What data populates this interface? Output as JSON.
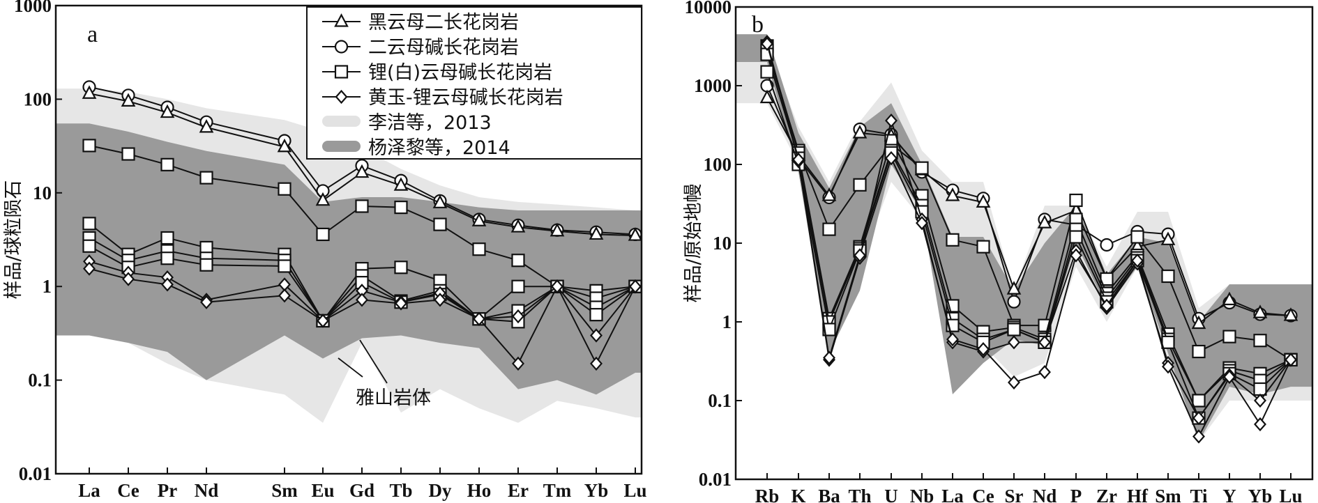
{
  "chart_data": [
    {
      "type": "line",
      "panel": "a",
      "ylabel": "样品/球粒陨石",
      "yscale": "log",
      "ylim": [
        0.01,
        1000
      ],
      "yticks": [
        "0.01",
        "0.1",
        "1",
        "10",
        "100",
        "1000"
      ],
      "categories": [
        "La",
        "Ce",
        "Pr",
        "Nd",
        "Sm",
        "Eu",
        "Gd",
        "Tb",
        "Dy",
        "Ho",
        "Er",
        "Tm",
        "Yb",
        "Lu"
      ],
      "legend": [
        {
          "label": "黑云母二长花岗岩",
          "marker": "triangle"
        },
        {
          "label": "二云母碱长花岗岩",
          "marker": "circle"
        },
        {
          "label": "锂(白)云母碱长花岗岩",
          "marker": "square"
        },
        {
          "label": "黄玉-锂云母碱长花岗岩",
          "marker": "diamond"
        },
        {
          "label": "李洁等，2013",
          "marker": "light-band"
        },
        {
          "label": "杨泽黎等，2014",
          "marker": "dark-band"
        }
      ],
      "annotation": "雅山岩体",
      "bands": [
        {
          "name": "李洁等，2013",
          "color": "#e6e6e6",
          "upper": [
            130,
            120,
            100,
            80,
            60,
            45,
            30,
            18,
            12,
            9,
            8,
            7.5,
            7,
            6.5
          ],
          "lower": [
            0.3,
            0.25,
            0.15,
            0.1,
            0.07,
            0.035,
            0.25,
            0.045,
            0.08,
            0.05,
            0.035,
            0.06,
            0.05,
            0.04
          ]
        },
        {
          "name": "杨泽黎等，2014",
          "color": "#9a9a9a",
          "upper": [
            55,
            45,
            35,
            28,
            20,
            8,
            9,
            9,
            8,
            7,
            6.5,
            6.5,
            6.5,
            6.5
          ],
          "lower": [
            0.3,
            0.25,
            0.2,
            0.1,
            0.3,
            0.17,
            0.28,
            0.3,
            0.25,
            0.22,
            0.08,
            0.1,
            0.07,
            0.12
          ]
        }
      ],
      "series": [
        {
          "marker": "circle",
          "values": [
            135,
            110,
            82,
            57,
            36,
            10.5,
            19.5,
            13.5,
            8.2,
            5.2,
            4.5,
            4.0,
            3.8,
            3.6
          ]
        },
        {
          "marker": "triangle",
          "values": [
            115,
            95,
            72,
            50,
            31,
            8.3,
            16.5,
            12.0,
            7.8,
            5.0,
            4.3,
            3.9,
            3.6,
            3.5
          ]
        },
        {
          "marker": "square",
          "values": [
            32,
            26,
            20,
            14.5,
            11,
            3.6,
            7.2,
            7.0,
            4.6,
            2.5,
            1.9,
            1.0,
            0.9,
            1.0
          ]
        },
        {
          "marker": "square",
          "values": [
            4.7,
            2.2,
            3.3,
            2.6,
            2.2,
            0.43,
            1.55,
            1.6,
            1.15,
            0.45,
            0.55,
            1.0,
            0.75,
            1.0
          ]
        },
        {
          "marker": "square",
          "values": [
            3.3,
            1.9,
            2.4,
            2.0,
            1.9,
            0.43,
            1.3,
            0.7,
            0.9,
            0.45,
            0.42,
            1.0,
            0.6,
            1.0
          ]
        },
        {
          "marker": "square",
          "values": [
            2.7,
            1.6,
            2.0,
            1.7,
            1.65,
            0.43,
            1.1,
            0.68,
            0.82,
            0.45,
            1.0,
            1.0,
            0.5,
            1.0
          ]
        },
        {
          "marker": "diamond",
          "values": [
            1.85,
            1.4,
            1.25,
            0.72,
            1.05,
            0.43,
            0.9,
            0.68,
            0.85,
            0.45,
            0.15,
            1.0,
            0.3,
            1.0
          ]
        },
        {
          "marker": "diamond",
          "values": [
            1.55,
            1.2,
            1.05,
            0.68,
            0.8,
            0.43,
            0.72,
            0.66,
            0.72,
            0.45,
            0.48,
            1.0,
            0.15,
            1.0
          ]
        }
      ]
    },
    {
      "type": "line",
      "panel": "b",
      "ylabel": "样品/原始地幔",
      "yscale": "log",
      "ylim": [
        0.01,
        10000
      ],
      "yticks": [
        "0.01",
        "0.1",
        "1",
        "10",
        "100",
        "1000",
        "10000"
      ],
      "categories": [
        "Rb",
        "K",
        "Ba",
        "Th",
        "U",
        "Nb",
        "La",
        "Ce",
        "Sr",
        "Nd",
        "P",
        "Zr",
        "Hf",
        "Sm",
        "Ti",
        "Y",
        "Yb",
        "Lu"
      ],
      "bands": [
        {
          "name": "李洁等，2013",
          "color": "#e6e6e6",
          "upper": [
            3500,
            300,
            60,
            350,
            1100,
            150,
            60,
            60,
            2.5,
            30,
            30,
            5,
            25,
            25,
            1.5,
            3,
            3,
            3
          ],
          "lower": [
            600,
            100,
            1.5,
            5,
            60,
            20,
            0.5,
            0.5,
            0.2,
            0.3,
            5,
            1,
            5,
            0.3,
            0.03,
            0.1,
            0.1,
            0.1
          ]
        },
        {
          "name": "杨泽黎等，2014",
          "color": "#9a9a9a",
          "upper": [
            4500,
            250,
            50,
            300,
            600,
            100,
            12,
            12,
            2.5,
            10,
            30,
            4,
            12,
            10,
            1.0,
            3,
            3,
            3
          ],
          "lower": [
            2000,
            80,
            0.4,
            2.5,
            100,
            25,
            0.12,
            0.3,
            0.6,
            0.5,
            10,
            1.5,
            5,
            0.4,
            0.03,
            0.15,
            0.12,
            0.15
          ]
        }
      ],
      "series": [
        {
          "marker": "circle",
          "values": [
            1000,
            120,
            38,
            280,
            240,
            80,
            47,
            37,
            1.8,
            20,
            17,
            9.5,
            14,
            13,
            1.1,
            1.75,
            1.25,
            1.2
          ]
        },
        {
          "marker": "triangle",
          "values": [
            700,
            130,
            40,
            250,
            230,
            85,
            40,
            33,
            2.6,
            18,
            26,
            3.5,
            9,
            11,
            0.95,
            1.9,
            1.3,
            1.2
          ]
        },
        {
          "marker": "square",
          "values": [
            2800,
            150,
            15,
            55,
            180,
            90,
            11,
            9,
            0.9,
            0.9,
            35,
            3.5,
            12,
            3.8,
            0.42,
            0.65,
            0.58,
            0.33
          ]
        },
        {
          "marker": "square",
          "values": [
            3200,
            140,
            1.1,
            9,
            200,
            40,
            1.6,
            0.75,
            0.85,
            0.6,
            20,
            2.3,
            7,
            0.7,
            0.1,
            0.26,
            0.22,
            0.33
          ]
        },
        {
          "marker": "square",
          "values": [
            2500,
            120,
            1.0,
            8.5,
            150,
            30,
            1.1,
            0.6,
            0.8,
            0.55,
            15,
            2.0,
            6.5,
            0.6,
            0.1,
            0.24,
            0.18,
            0.33
          ]
        },
        {
          "marker": "square",
          "values": [
            1500,
            100,
            0.8,
            8,
            140,
            25,
            0.9,
            0.55,
            0.8,
            0.55,
            12,
            1.8,
            6,
            0.55,
            0.06,
            0.22,
            0.14,
            0.33
          ]
        },
        {
          "marker": "diamond",
          "values": [
            3600,
            110,
            0.33,
            6.5,
            360,
            20,
            0.55,
            0.42,
            0.55,
            0.55,
            8,
            1.5,
            5.5,
            0.3,
            0.06,
            0.21,
            0.1,
            0.33
          ]
        },
        {
          "marker": "diamond",
          "values": [
            3400,
            115,
            0.35,
            7,
            120,
            18,
            0.6,
            0.45,
            0.17,
            0.23,
            7,
            1.6,
            6,
            0.27,
            0.035,
            0.2,
            0.05,
            0.33
          ]
        }
      ]
    }
  ]
}
